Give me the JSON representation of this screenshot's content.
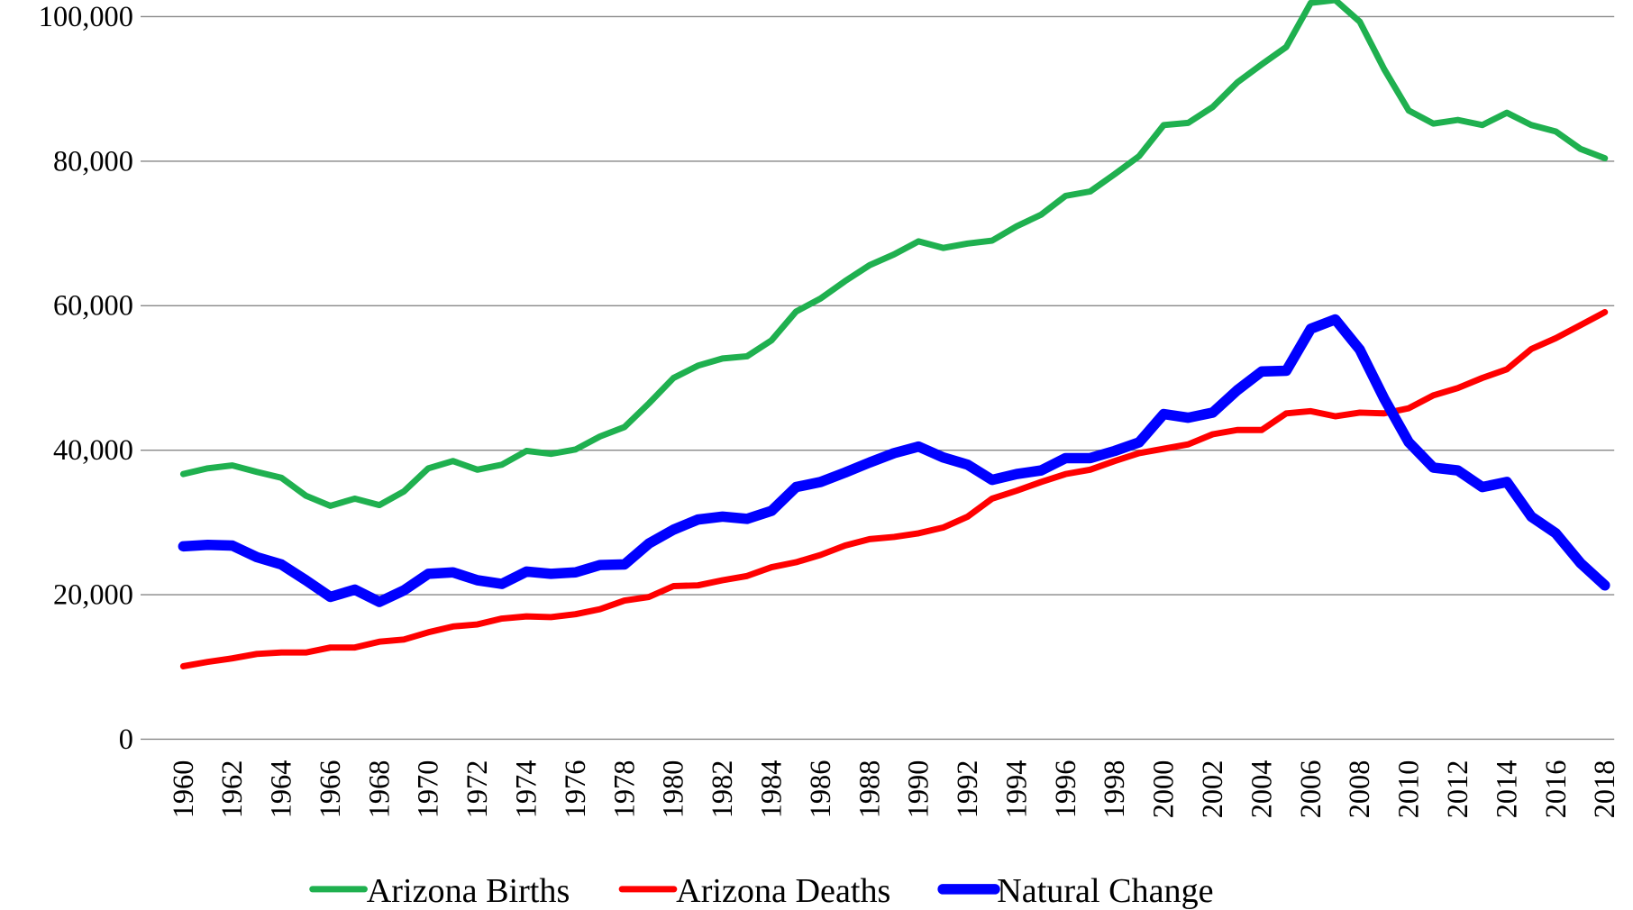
{
  "chart_data": {
    "type": "line",
    "categories": [
      "1960",
      null,
      "1962",
      null,
      "1964",
      null,
      "1966",
      null,
      "1968",
      null,
      "1970",
      null,
      "1972",
      null,
      "1974",
      null,
      "1976",
      null,
      "1978",
      null,
      "1980",
      null,
      "1982",
      null,
      "1984",
      null,
      "1986",
      null,
      "1988",
      null,
      "1990",
      null,
      "1992",
      null,
      "1994",
      null,
      "1996",
      null,
      "1998",
      null,
      "2000",
      null,
      "2002",
      null,
      "2004",
      null,
      "2006",
      null,
      "2008",
      null,
      "2010",
      null,
      "2012",
      null,
      "2014",
      null,
      "2016",
      null,
      "2018"
    ],
    "series": [
      {
        "name": "Arizona Births",
        "color": "#1fb04f",
        "values": [
          36700,
          37500,
          37900,
          37000,
          36200,
          33700,
          32300,
          33300,
          32400,
          34300,
          37500,
          38500,
          37300,
          38000,
          39900,
          39500,
          40100,
          41900,
          43200,
          46500,
          50000,
          51700,
          52700,
          53000,
          55200,
          59200,
          61000,
          63400,
          65600,
          67100,
          68900,
          68000,
          68600,
          69000,
          71000,
          72600,
          75200,
          75800,
          78200,
          80700,
          85000,
          85300,
          87500,
          90900,
          93400,
          95800,
          101900,
          102300,
          99300,
          92700,
          87000,
          85200,
          85700,
          85000,
          86700,
          85000,
          84100,
          81700,
          80400
        ]
      },
      {
        "name": "Arizona Deaths",
        "color": "#ff0000",
        "values": [
          10100,
          10700,
          11200,
          11800,
          12000,
          12000,
          12700,
          12700,
          13500,
          13800,
          14800,
          15600,
          15900,
          16700,
          17000,
          16900,
          17300,
          18000,
          19200,
          19700,
          21200,
          21300,
          22000,
          22600,
          23800,
          24500,
          25500,
          26800,
          27700,
          28000,
          28500,
          29300,
          30800,
          33300,
          34400,
          35600,
          36700,
          37300,
          38500,
          39600,
          40200,
          40800,
          42200,
          42800,
          42800,
          45100,
          45400,
          44700,
          45200,
          45100,
          45800,
          47600,
          48600,
          50000,
          51200,
          54000,
          55500,
          57300,
          59100
        ]
      },
      {
        "name": "Natural Change",
        "color": "#0000ff",
        "values": [
          26700,
          26900,
          26800,
          25200,
          24200,
          22000,
          19700,
          20700,
          19000,
          20600,
          22900,
          23100,
          22000,
          21500,
          23200,
          22900,
          23100,
          24100,
          24200,
          27100,
          29000,
          30400,
          30800,
          30500,
          31600,
          34900,
          35600,
          36900,
          38300,
          39600,
          40500,
          39000,
          38000,
          35900,
          36700,
          37200,
          38900,
          38900,
          39900,
          41100,
          45000,
          44500,
          45200,
          48300,
          50900,
          51000,
          56800,
          58100,
          53900,
          47100,
          41100,
          37600,
          37200,
          34900,
          35600,
          30800,
          28500,
          24400,
          21300
        ]
      }
    ],
    "ylim": [
      0,
      100000
    ],
    "yticks": [
      0,
      {
        "value": 20000,
        "label": "20,000"
      },
      {
        "value": 40000,
        "label": "40,000"
      },
      {
        "value": 60000,
        "label": "60,000"
      },
      {
        "value": 80000,
        "label": "80,000"
      },
      {
        "value": 100000,
        "label": "100,000"
      }
    ],
    "grid": true,
    "legend": "bottom"
  }
}
